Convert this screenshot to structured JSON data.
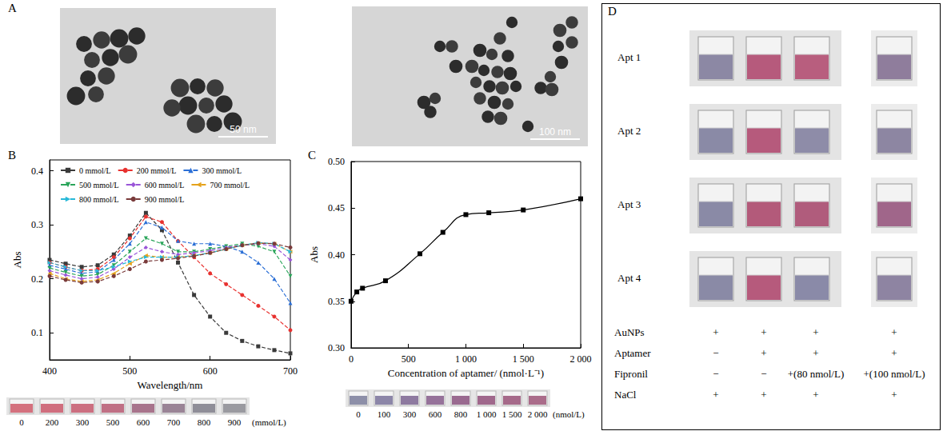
{
  "chart_data": [
    {
      "panel": "B",
      "type": "line",
      "xlabel": "Wavelength/nm",
      "ylabel": "Abs",
      "x": [
        400,
        420,
        440,
        460,
        480,
        500,
        520,
        540,
        560,
        580,
        600,
        620,
        640,
        660,
        680,
        700
      ],
      "series": [
        {
          "name": "0 mmol/L",
          "color": "#3a3a3a",
          "marker": "square",
          "line_style": "dashed",
          "values": [
            0.235,
            0.228,
            0.222,
            0.225,
            0.245,
            0.28,
            0.322,
            0.29,
            0.23,
            0.17,
            0.13,
            0.1,
            0.085,
            0.075,
            0.068,
            0.062
          ]
        },
        {
          "name": "200 mmol/L",
          "color": "#e8312f",
          "marker": "circle",
          "line_style": "dashed",
          "values": [
            0.23,
            0.222,
            0.215,
            0.218,
            0.24,
            0.275,
            0.315,
            0.305,
            0.27,
            0.24,
            0.21,
            0.19,
            0.17,
            0.15,
            0.13,
            0.105
          ]
        },
        {
          "name": "300 mmol/L",
          "color": "#2b6fd6",
          "marker": "triangle-up",
          "line_style": "dashed",
          "values": [
            0.225,
            0.218,
            0.21,
            0.213,
            0.235,
            0.265,
            0.305,
            0.295,
            0.27,
            0.265,
            0.265,
            0.26,
            0.25,
            0.23,
            0.2,
            0.155
          ]
        },
        {
          "name": "500 mmol/L",
          "color": "#2aa55a",
          "marker": "triangle-down",
          "line_style": "dashed",
          "values": [
            0.22,
            0.212,
            0.205,
            0.208,
            0.225,
            0.25,
            0.275,
            0.265,
            0.25,
            0.25,
            0.255,
            0.26,
            0.265,
            0.26,
            0.25,
            0.205
          ]
        },
        {
          "name": "600 mmol/L",
          "color": "#9a55d8",
          "marker": "diamond",
          "line_style": "dashed",
          "values": [
            0.215,
            0.207,
            0.2,
            0.203,
            0.218,
            0.24,
            0.258,
            0.25,
            0.245,
            0.248,
            0.252,
            0.258,
            0.262,
            0.265,
            0.26,
            0.235
          ]
        },
        {
          "name": "700 mmol/L",
          "color": "#e5a21b",
          "marker": "triangle-left",
          "line_style": "dashed",
          "values": [
            0.21,
            0.2,
            0.195,
            0.198,
            0.21,
            0.228,
            0.243,
            0.24,
            0.24,
            0.243,
            0.248,
            0.255,
            0.262,
            0.266,
            0.265,
            0.25
          ]
        },
        {
          "name": "800 mmol/L",
          "color": "#27b8d8",
          "marker": "triangle-right",
          "line_style": "dashed",
          "values": [
            0.23,
            0.222,
            0.215,
            0.215,
            0.222,
            0.232,
            0.24,
            0.24,
            0.24,
            0.243,
            0.248,
            0.255,
            0.262,
            0.267,
            0.265,
            0.25
          ]
        },
        {
          "name": "900 mmol/L",
          "color": "#7a3b3b",
          "marker": "circle",
          "line_style": "dashed",
          "values": [
            0.205,
            0.198,
            0.193,
            0.195,
            0.205,
            0.218,
            0.232,
            0.235,
            0.238,
            0.242,
            0.248,
            0.255,
            0.262,
            0.266,
            0.265,
            0.258
          ]
        }
      ],
      "xlim": [
        400,
        700
      ],
      "xticks": [
        400,
        500,
        600,
        700
      ],
      "ylim": [
        0.05,
        0.42
      ],
      "yticks": [
        0.1,
        0.2,
        0.3,
        0.4
      ],
      "legend": "upper left",
      "grid": false,
      "photo": {
        "labels": [
          "0",
          "200",
          "300",
          "500",
          "600",
          "700",
          "800",
          "900"
        ],
        "unit": "(mmol/L)",
        "colors": [
          "#d4717e",
          "#d06e7e",
          "#cc6f80",
          "#c07085",
          "#a8748c",
          "#9a8496",
          "#8f8e98",
          "#9a9aa0"
        ]
      }
    },
    {
      "panel": "C",
      "type": "line",
      "xlabel": "Concentration of aptamer/ (nmol·L⁻¹)",
      "ylabel": "Abs",
      "x": [
        0,
        50,
        100,
        300,
        600,
        800,
        1000,
        1200,
        1500,
        2000
      ],
      "values": [
        0.35,
        0.36,
        0.364,
        0.372,
        0.401,
        0.424,
        0.443,
        0.445,
        0.448,
        0.46
      ],
      "color": "#000000",
      "marker": "square",
      "line_style": "solid",
      "xlim": [
        0,
        2000
      ],
      "xticks": [
        0,
        500,
        {
          "value": 1000,
          "label": "1 000"
        },
        {
          "value": 1500,
          "label": "1 500"
        },
        {
          "value": 2000,
          "label": "2 000"
        }
      ],
      "ylim": [
        0.3,
        0.5
      ],
      "yticks": [
        {
          "value": 0.3,
          "label": "0.30"
        },
        {
          "value": 0.35,
          "label": "0.35"
        },
        {
          "value": 0.4,
          "label": "0.40"
        },
        {
          "value": 0.45,
          "label": "0.45"
        },
        {
          "value": 0.5,
          "label": "0.50"
        }
      ],
      "grid": false,
      "photo": {
        "labels": [
          "0",
          "100",
          "300",
          "600",
          "800",
          "1 000",
          "1 500",
          "2 000"
        ],
        "unit": "(nmol/L)",
        "colors": [
          "#8d8fa8",
          "#8c86a8",
          "#8e7aa0",
          "#96729a",
          "#9a6a90",
          "#a0688c",
          "#a66a8a",
          "#aa6c8a"
        ]
      }
    }
  ],
  "panel_a": {
    "panel": "A",
    "images": [
      {
        "scale_bar": "50 nm"
      },
      {
        "scale_bar": "100 nm"
      }
    ]
  },
  "panel_d": {
    "panel": "D",
    "rows": [
      {
        "label": "Apt 1",
        "colors": [
          "#8c88a4",
          "#b65a7c",
          "#b85e7e",
          "#8f7d9c"
        ]
      },
      {
        "label": "Apt 2",
        "colors": [
          "#8a8aa6",
          "#b65a7c",
          "#8e8ca8",
          "#8d86a2"
        ]
      },
      {
        "label": "Apt 3",
        "colors": [
          "#8a8aa6",
          "#b35a7a",
          "#b05c7c",
          "#a0668a"
        ]
      },
      {
        "label": "Apt 4",
        "colors": [
          "#8a8aa6",
          "#b65a7c",
          "#8a8aa8",
          "#8e84a2"
        ]
      }
    ],
    "table": [
      {
        "label": "AuNPs",
        "cells": [
          "+",
          "+",
          "+",
          "+"
        ]
      },
      {
        "label": "Aptamer",
        "cells": [
          "−",
          "+",
          "+",
          "+"
        ]
      },
      {
        "label": "Fipronil",
        "cells": [
          "−",
          "−",
          "+(80 nmol/L)",
          "+(100 nmol/L)"
        ]
      },
      {
        "label": "NaCl",
        "cells": [
          "+",
          "+",
          "+",
          "+"
        ]
      }
    ]
  }
}
